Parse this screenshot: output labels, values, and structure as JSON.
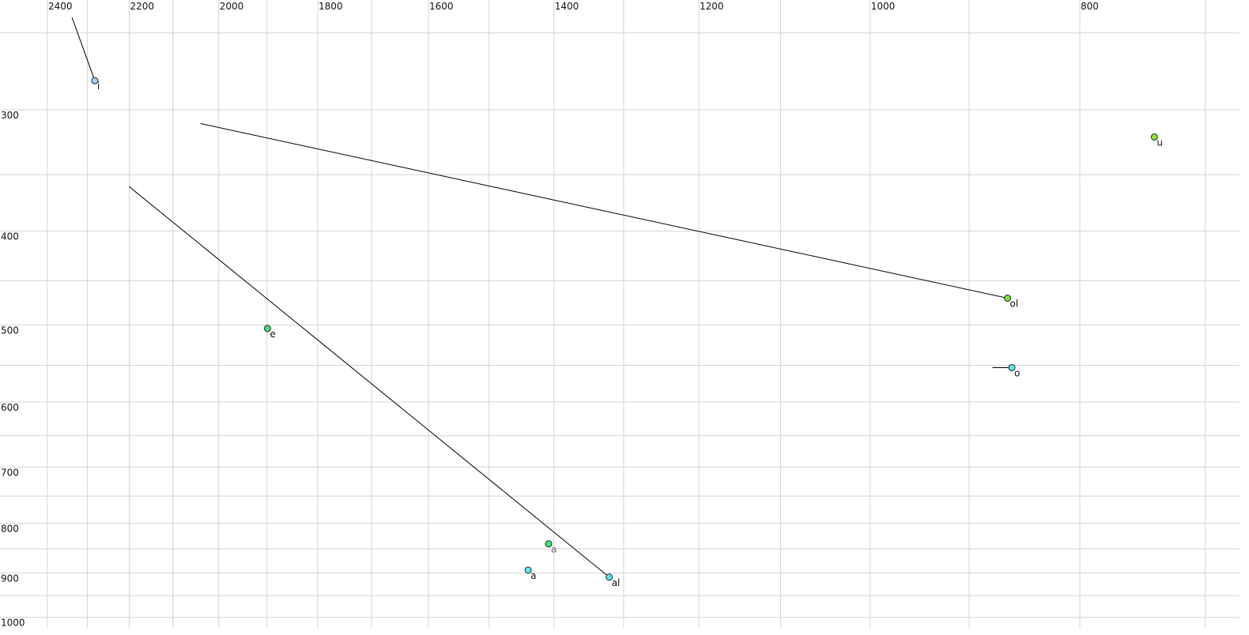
{
  "chart_data": {
    "type": "scatter",
    "title": "",
    "xlabel": "",
    "ylabel": "",
    "x_scale": "log",
    "y_scale": "log",
    "x_reversed": true,
    "y_reversed": false,
    "xlim": [
      2400,
      700
    ],
    "ylim": [
      250,
      1000
    ],
    "grid": true,
    "x_gridlines": [
      2400,
      2300,
      2200,
      2100,
      2000,
      1900,
      1800,
      1700,
      1600,
      1500,
      1400,
      1300,
      1200,
      1100,
      1000,
      900,
      800,
      700
    ],
    "y_gridlines": [
      250,
      300,
      350,
      400,
      450,
      500,
      550,
      600,
      650,
      700,
      750,
      800,
      850,
      900,
      950,
      1000
    ],
    "x_ticks": [
      2400,
      2200,
      2000,
      1800,
      1600,
      1400,
      1200,
      1000,
      800
    ],
    "y_ticks": [
      300,
      400,
      500,
      600,
      700,
      800,
      900,
      1000
    ],
    "points": [
      {
        "label": "i",
        "x": 2282,
        "y": 280,
        "color": "#a8ccf4",
        "label_color": "#111111",
        "trail_from": {
          "x": 2338,
          "y": 241
        }
      },
      {
        "label": "u",
        "x": 739,
        "y": 320,
        "color": "#8fe03c",
        "label_color": "#111111"
      },
      {
        "label": "ol",
        "x": 864,
        "y": 469,
        "color": "#7ee03a",
        "label_color": "#111111",
        "trail_from": {
          "x": 2039,
          "y": 310
        }
      },
      {
        "label": "o",
        "x": 860,
        "y": 553,
        "color": "#5ee6dc",
        "label_color": "#111111",
        "trail_from": {
          "x": 878,
          "y": 553
        }
      },
      {
        "label": "e",
        "x": 1899,
        "y": 504,
        "color": "#4ee070",
        "label_color": "#111111"
      },
      {
        "label": "a",
        "x": 1408,
        "y": 840,
        "color": "#4ee070",
        "label_color": "#707080"
      },
      {
        "label": "a",
        "x": 1439,
        "y": 894,
        "color": "#5ee8f0",
        "label_color": "#111111"
      },
      {
        "label": "al",
        "x": 1320,
        "y": 909,
        "color": "#5ee0f0",
        "label_color": "#111111",
        "trail_from": {
          "x": 2200,
          "y": 360
        }
      }
    ]
  }
}
